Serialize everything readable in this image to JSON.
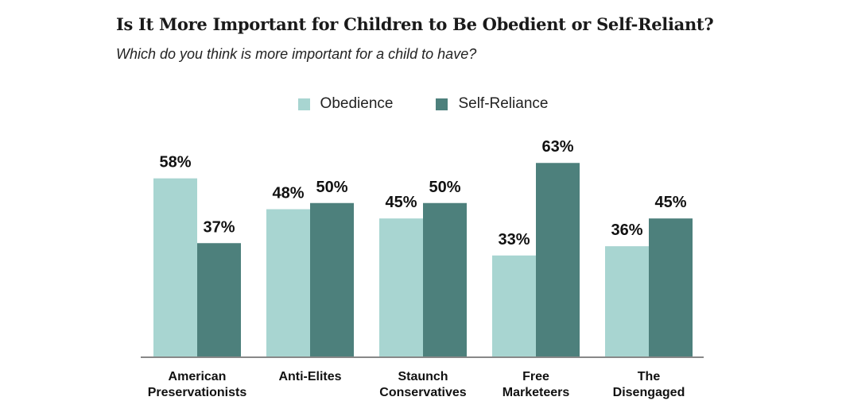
{
  "title": "Is It More Important for Children to Be Obedient or Self-Reliant?",
  "subtitle": "Which do you think is more important for a child to have?",
  "colors": {
    "obedience": "#a8d5d1",
    "self_reliance": "#4d807c",
    "axis": "#888888"
  },
  "chart_data": {
    "type": "bar",
    "title": "Is It More Important for Children to Be Obedient or Self-Reliant?",
    "subtitle": "Which do you think is more important for a child to have?",
    "xlabel": "",
    "ylabel": "",
    "ylim": [
      0,
      70
    ],
    "grid": false,
    "legend_position": "top-center",
    "categories": [
      [
        "American",
        "Preservationists"
      ],
      [
        "Anti-Elites"
      ],
      [
        "Staunch",
        "Conservatives"
      ],
      [
        "Free",
        "Marketeers"
      ],
      [
        "The",
        "Disengaged"
      ]
    ],
    "series": [
      {
        "name": "Obedience",
        "values": [
          58,
          48,
          45,
          33,
          36
        ],
        "labels": [
          "58%",
          "48%",
          "45%",
          "33%",
          "36%"
        ]
      },
      {
        "name": "Self-Reliance",
        "values": [
          37,
          50,
          50,
          63,
          45
        ],
        "labels": [
          "37%",
          "50%",
          "50%",
          "63%",
          "45%"
        ]
      }
    ]
  }
}
